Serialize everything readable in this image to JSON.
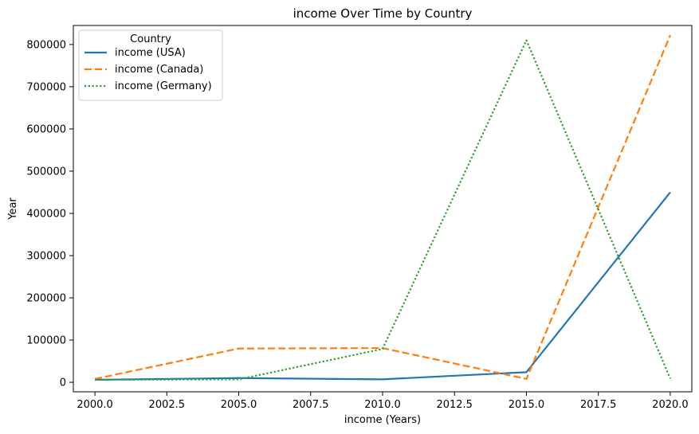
{
  "chart_data": {
    "type": "line",
    "title": "income Over Time by Country",
    "xlabel": "income (Years)",
    "ylabel": "Year",
    "x": [
      2000,
      2005,
      2010,
      2015,
      2020
    ],
    "xlim": [
      1999.25,
      2020.75
    ],
    "ylim": [
      -22500,
      845000
    ],
    "xticks": [
      2000,
      2002.5,
      2005,
      2007.5,
      2010,
      2012.5,
      2015,
      2017.5,
      2020
    ],
    "xtick_labels": [
      "2000.0",
      "2002.5",
      "2005.0",
      "2007.5",
      "2010.0",
      "2012.5",
      "2015.0",
      "2017.5",
      "2020.0"
    ],
    "yticks": [
      0,
      100000,
      200000,
      300000,
      400000,
      500000,
      600000,
      700000,
      800000
    ],
    "ytick_labels": [
      "0",
      "100000",
      "200000",
      "300000",
      "400000",
      "500000",
      "600000",
      "700000",
      "800000"
    ],
    "grid": false,
    "legend": {
      "title": "Country",
      "placement": "top-left"
    },
    "series": [
      {
        "name": "income (USA)",
        "values": [
          6000,
          10000,
          7000,
          24000,
          450000
        ],
        "color": "#1f77b4",
        "dash": "solid"
      },
      {
        "name": "income (Canada)",
        "values": [
          8000,
          80000,
          81000,
          8000,
          822000
        ],
        "color": "#ff7f0e",
        "dash": "dashed"
      },
      {
        "name": "income (Germany)",
        "values": [
          6000,
          7000,
          79000,
          810000,
          9000
        ],
        "color": "#2ca02c",
        "dash": "dotted"
      }
    ]
  }
}
